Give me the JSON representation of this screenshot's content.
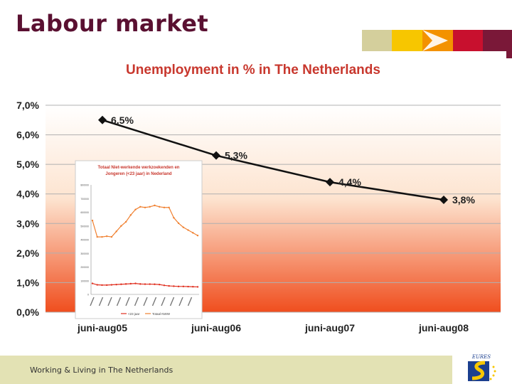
{
  "slide": {
    "title": "Labour market",
    "footer": "Working & Living in The Netherlands",
    "logo_text": "EURES"
  },
  "colors": {
    "title": "#5a1031",
    "chart_title": "#c8372d",
    "deco": [
      "#d4cf9c",
      "#f7c600",
      "#f39200",
      "#c8102e",
      "#7a1838"
    ],
    "gradient_top": "#ffffff",
    "gradient_bottom": "#f04e1e",
    "line": "#111111",
    "inset_line_total": "#f08030",
    "inset_line_young": "#e03020"
  },
  "chart_data": [
    {
      "type": "line",
      "title": "Unemployment in % in The Netherlands",
      "categories": [
        "juni-aug05",
        "juni-aug06",
        "juni-aug07",
        "juni-aug08"
      ],
      "series": [
        {
          "values": [
            6.5,
            5.3,
            4.4,
            3.8
          ],
          "labels": [
            "6,5%",
            "5,3%",
            "4,4%",
            "3,8%"
          ]
        }
      ],
      "ylim": [
        0,
        7
      ],
      "yticks": [
        0,
        1,
        2,
        3,
        4,
        5,
        6,
        7
      ],
      "ytick_labels": [
        "0,0%",
        "1,0%",
        "2,0%",
        "3,0%",
        "4,0%",
        "5,0%",
        "6,0%",
        "7,0%"
      ],
      "grid": true
    },
    {
      "type": "line",
      "title": "Totaal Niet-werkende werkzoekenden en Jongeren (<23 jaar) in Nederland",
      "ytick_labels": [
        "0",
        "100000",
        "200000",
        "300000",
        "400000",
        "500000",
        "600000",
        "700000",
        "800000"
      ],
      "ylim": [
        0,
        800000
      ],
      "legend": [
        "<23 jaar",
        "Totaal NWW"
      ],
      "legend_position": "bottom",
      "series": [
        {
          "name": "<23 jaar",
          "values": [
            80000,
            70000,
            68000,
            68000,
            70000,
            72000,
            74000,
            76000,
            78000,
            80000,
            76000,
            75000,
            75000,
            74000,
            72000,
            66000,
            62000,
            60000,
            58000,
            58000,
            57000,
            56000,
            55000
          ]
        },
        {
          "name": "Totaal NWW",
          "values": [
            540000,
            420000,
            420000,
            425000,
            420000,
            460000,
            500000,
            530000,
            580000,
            620000,
            640000,
            635000,
            640000,
            650000,
            640000,
            635000,
            635000,
            560000,
            520000,
            490000,
            470000,
            450000,
            430000
          ]
        }
      ]
    }
  ]
}
